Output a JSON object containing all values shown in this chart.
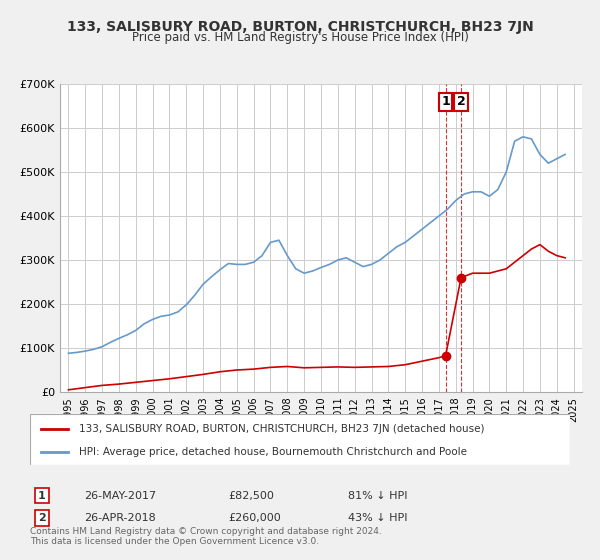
{
  "title": "133, SALISBURY ROAD, BURTON, CHRISTCHURCH, BH23 7JN",
  "subtitle": "Price paid vs. HM Land Registry's House Price Index (HPI)",
  "bg_color": "#f0f0f0",
  "plot_bg_color": "#ffffff",
  "red_line_color": "#cc0000",
  "blue_line_color": "#6699cc",
  "vline_color": "#cc0000",
  "ylim": [
    0,
    700000
  ],
  "yticks": [
    0,
    100000,
    200000,
    300000,
    400000,
    500000,
    600000,
    700000
  ],
  "ytick_labels": [
    "£0",
    "£100K",
    "£200K",
    "£300K",
    "£400K",
    "£500K",
    "£600K",
    "£700K"
  ],
  "xlim_start": 1994.5,
  "xlim_end": 2025.5,
  "xtick_years": [
    1995,
    1996,
    1997,
    1998,
    1999,
    2000,
    2001,
    2002,
    2003,
    2004,
    2005,
    2006,
    2007,
    2008,
    2009,
    2010,
    2011,
    2012,
    2013,
    2014,
    2015,
    2016,
    2017,
    2018,
    2019,
    2020,
    2021,
    2022,
    2023,
    2024,
    2025
  ],
  "transaction1": {
    "date": 2017.4,
    "price": 82500,
    "label": "1"
  },
  "transaction2": {
    "date": 2018.32,
    "price": 260000,
    "label": "2"
  },
  "legend_red": "133, SALISBURY ROAD, BURTON, CHRISTCHURCH, BH23 7JN (detached house)",
  "legend_blue": "HPI: Average price, detached house, Bournemouth Christchurch and Poole",
  "table_row1": [
    "1",
    "26-MAY-2017",
    "£82,500",
    "81% ↓ HPI"
  ],
  "table_row2": [
    "2",
    "26-APR-2018",
    "£260,000",
    "43% ↓ HPI"
  ],
  "footnote": "Contains HM Land Registry data © Crown copyright and database right 2024.\nThis data is licensed under the Open Government Licence v3.0.",
  "hpi_x": [
    1995,
    1995.5,
    1996,
    1996.5,
    1997,
    1997.5,
    1998,
    1998.5,
    1999,
    1999.5,
    2000,
    2000.5,
    2001,
    2001.5,
    2002,
    2002.5,
    2003,
    2003.5,
    2004,
    2004.5,
    2005,
    2005.5,
    2006,
    2006.5,
    2007,
    2007.5,
    2008,
    2008.5,
    2009,
    2009.5,
    2010,
    2010.5,
    2011,
    2011.5,
    2012,
    2012.5,
    2013,
    2013.5,
    2014,
    2014.5,
    2015,
    2015.5,
    2016,
    2016.5,
    2017,
    2017.5,
    2018,
    2018.5,
    2019,
    2019.5,
    2020,
    2020.5,
    2021,
    2021.5,
    2022,
    2022.5,
    2023,
    2023.5,
    2024,
    2024.5
  ],
  "hpi_y": [
    88000,
    90000,
    93000,
    97000,
    103000,
    113000,
    122000,
    130000,
    140000,
    155000,
    165000,
    172000,
    175000,
    182000,
    198000,
    220000,
    245000,
    262000,
    278000,
    292000,
    290000,
    290000,
    295000,
    310000,
    340000,
    345000,
    310000,
    280000,
    270000,
    275000,
    283000,
    290000,
    300000,
    305000,
    295000,
    285000,
    290000,
    300000,
    315000,
    330000,
    340000,
    355000,
    370000,
    385000,
    400000,
    415000,
    435000,
    450000,
    455000,
    455000,
    445000,
    460000,
    500000,
    570000,
    580000,
    575000,
    540000,
    520000,
    530000,
    540000
  ],
  "red_x": [
    1995,
    1996,
    1997,
    1998,
    1999,
    2000,
    2001,
    2002,
    2003,
    2004,
    2005,
    2006,
    2007,
    2008,
    2009,
    2010,
    2011,
    2012,
    2013,
    2014,
    2015,
    2016,
    2017.0,
    2017.4,
    2018.32,
    2019,
    2020,
    2021,
    2022,
    2022.5,
    2023,
    2023.5,
    2024,
    2024.5
  ],
  "red_y": [
    5000,
    10000,
    15000,
    18000,
    22000,
    26000,
    30000,
    35000,
    40000,
    46000,
    50000,
    52000,
    56000,
    58000,
    55000,
    56000,
    57000,
    56000,
    57000,
    58000,
    62000,
    70000,
    78000,
    82500,
    260000,
    270000,
    270000,
    280000,
    310000,
    325000,
    335000,
    320000,
    310000,
    305000
  ]
}
